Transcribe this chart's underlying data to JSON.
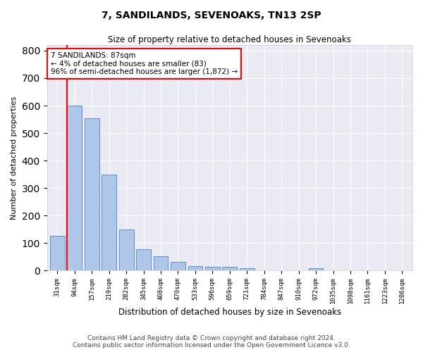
{
  "title": "7, SANDILANDS, SEVENOAKS, TN13 2SP",
  "subtitle": "Size of property relative to detached houses in Sevenoaks",
  "xlabel": "Distribution of detached houses by size in Sevenoaks",
  "ylabel": "Number of detached properties",
  "categories": [
    "31sqm",
    "94sqm",
    "157sqm",
    "219sqm",
    "282sqm",
    "345sqm",
    "408sqm",
    "470sqm",
    "533sqm",
    "596sqm",
    "659sqm",
    "721sqm",
    "784sqm",
    "847sqm",
    "910sqm",
    "972sqm",
    "1035sqm",
    "1098sqm",
    "1161sqm",
    "1223sqm",
    "1286sqm"
  ],
  "values": [
    125,
    600,
    555,
    348,
    150,
    78,
    52,
    30,
    15,
    13,
    13,
    8,
    0,
    0,
    0,
    8,
    0,
    0,
    0,
    0,
    0
  ],
  "bar_color": "#aec6e8",
  "bar_edge_color": "#5b8fc9",
  "annotation_box_text": "7 SANDILANDS: 87sqm\n← 4% of detached houses are smaller (83)\n96% of semi-detached houses are larger (1,872) →",
  "vline_color": "red",
  "box_color": "white",
  "box_edge_color": "red",
  "footer_line1": "Contains HM Land Registry data © Crown copyright and database right 2024.",
  "footer_line2": "Contains public sector information licensed under the Open Government Licence v3.0.",
  "ylim": [
    0,
    820
  ],
  "background_color": "#eaeaf4",
  "grid_color": "white"
}
